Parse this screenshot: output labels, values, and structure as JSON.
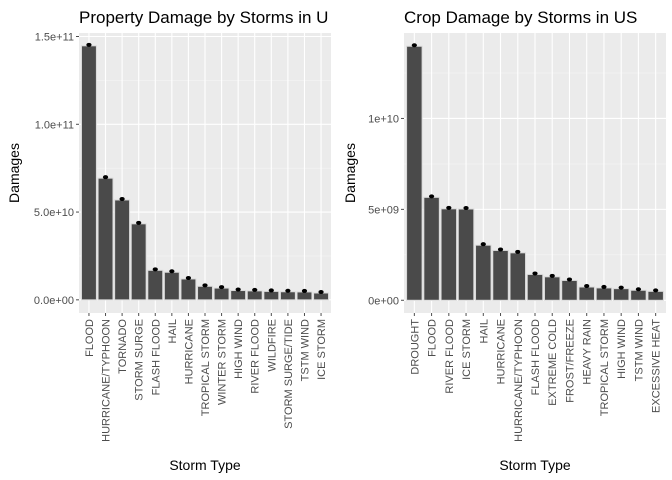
{
  "chart_data": [
    {
      "type": "bar",
      "title": "Property Damage by Storms in U",
      "xlabel": "Storm Type",
      "ylabel": "Damages",
      "ylim": [
        -7500000000,
        152000000000
      ],
      "yticks": [
        0,
        50000000000,
        100000000000,
        150000000000
      ],
      "ytick_labels": [
        "0.0e+00",
        "5.0e+10",
        "1.0e+11",
        "1.5e+11"
      ],
      "categories": [
        "FLOOD",
        "HURRICANE/TYPHOON",
        "TORNADO",
        "STORM SURGE",
        "FLASH FLOOD",
        "HAIL",
        "HURRICANE",
        "TROPICAL STORM",
        "WINTER STORM",
        "HIGH WIND",
        "RIVER FLOOD",
        "WILDFIRE",
        "STORM SURGE/TIDE",
        "TSTM WIND",
        "ICE STORM"
      ],
      "values": [
        144700000000,
        69300000000,
        56900000000,
        43300000000,
        16800000000,
        15700000000,
        11900000000,
        7700000000,
        6700000000,
        5300000000,
        5100000000,
        4800000000,
        4600000000,
        4500000000,
        3900000000
      ],
      "grid": true,
      "legend": "none"
    },
    {
      "type": "bar",
      "title": "Crop Damage by Storms in US",
      "xlabel": "Storm Type",
      "ylabel": "Damages",
      "ylim": [
        -700000000,
        14700000000
      ],
      "yticks": [
        0,
        5000000000,
        10000000000
      ],
      "ytick_labels": [
        "0e+00",
        "5e+09",
        "1e+10"
      ],
      "categories": [
        "DROUGHT",
        "FLOOD",
        "RIVER FLOOD",
        "ICE STORM",
        "HAIL",
        "HURRICANE",
        "HURRICANE/TYPHOON",
        "FLASH FLOOD",
        "EXTREME COLD",
        "FROST/FREEZE",
        "HEAVY RAIN",
        "TROPICAL STORM",
        "HIGH WIND",
        "TSTM WIND",
        "EXCESSIVE HEAT"
      ],
      "values": [
        13970000000,
        5660000000,
        5030000000,
        5020000000,
        3030000000,
        2740000000,
        2610000000,
        1420000000,
        1290000000,
        1090000000,
        730000000,
        680000000,
        640000000,
        550000000,
        490000000
      ],
      "grid": true,
      "legend": "none"
    }
  ]
}
